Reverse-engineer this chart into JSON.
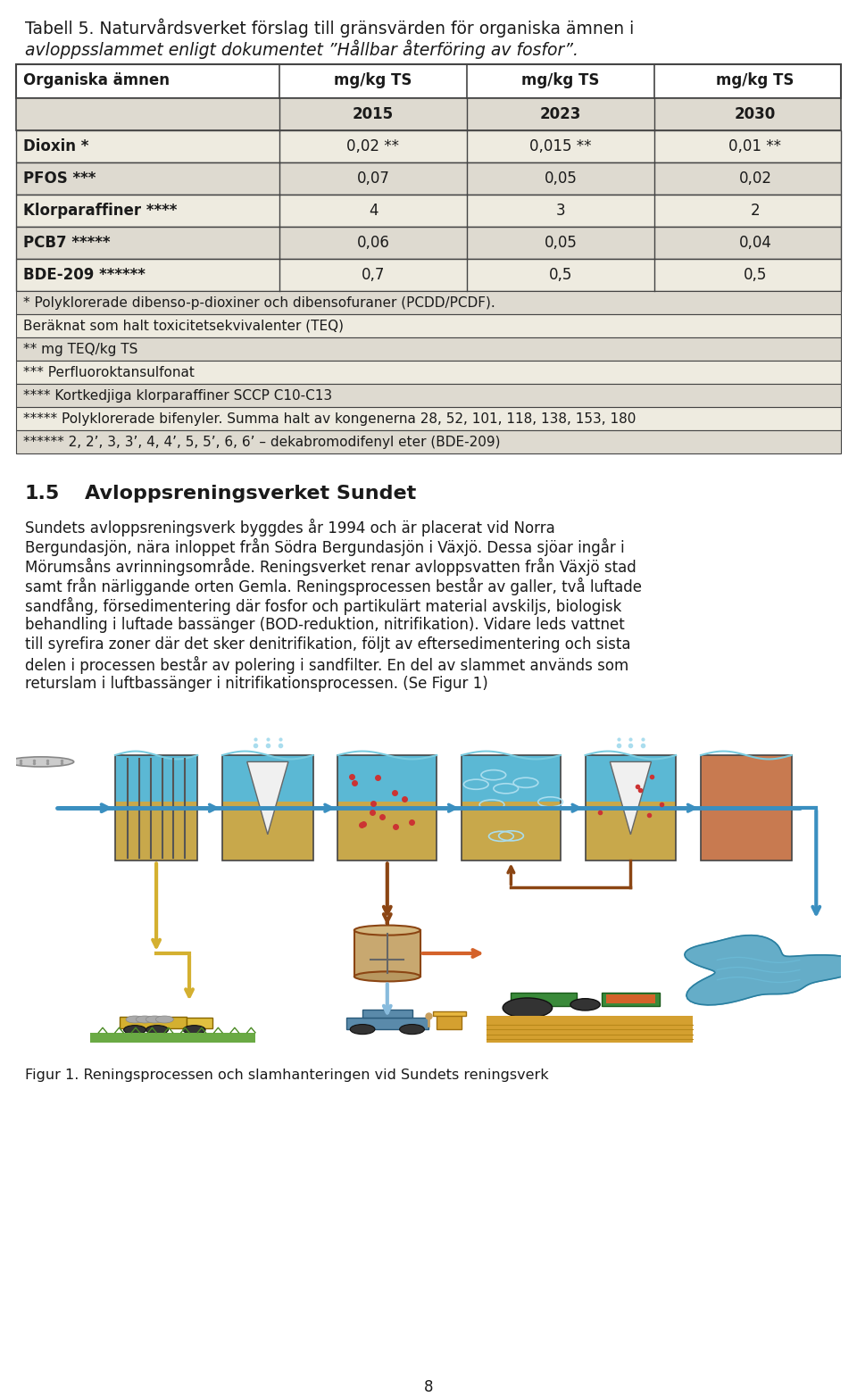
{
  "title_line1": "Tabell 5. Naturvårdsverket förslag till gränsvärden för organiska ämnen i",
  "title_line2": "avloppsslammet enligt dokumentet ”Hållbar återföring av fosfor”.",
  "table_header_col1": "Organiska ämnen",
  "table_header_col2": "mg/kg TS",
  "table_header_col3": "mg/kg TS",
  "table_header_col4": "mg/kg TS",
  "table_subheader_col2": "2015",
  "table_subheader_col3": "2023",
  "table_subheader_col4": "2030",
  "table_rows": [
    [
      "Dioxin *",
      "0,02 **",
      "0,015 **",
      "0,01 **"
    ],
    [
      "PFOS ***",
      "0,07",
      "0,05",
      "0,02"
    ],
    [
      "Klorparaffiner ****",
      "4",
      "3",
      "2"
    ],
    [
      "PCB7 *****",
      "0,06",
      "0,05",
      "0,04"
    ],
    [
      "BDE-209 ******",
      "0,7",
      "0,5",
      "0,5"
    ]
  ],
  "footnotes": [
    "* Polyklorerade dibenso-p-dioxiner och dibensofuraner (PCDD/PCDF).",
    "Beräknat som halt toxicitetsekvivalenter (TEQ)",
    "** mg TEQ/kg TS",
    "*** Perfluoroktansulfonat",
    "**** Kortkedjiga klorparaffiner SCCP C10-C13",
    "***** Polyklorerade bifenyler. Summa halt av kongenerna 28, 52, 101, 118, 138, 153, 180",
    "****** 2, 2’, 3, 3’, 4, 4’, 5, 5’, 6, 6’ – dekabromodifenyl eter (BDE-209)"
  ],
  "footnote_bgs": [
    "#dedad0",
    "#eeebe0",
    "#dedad0",
    "#eeebe0",
    "#dedad0",
    "#eeebe0",
    "#dedad0"
  ],
  "section_number": "1.5",
  "section_title": "Avloppsreningsverket Sundet",
  "paragraph_lines": [
    "Sundets avloppsreningsverk byggdes år 1994 och är placerat vid Norra",
    "Bergundasjön, nära inloppet från Södra Bergundasjön i Växjö. Dessa sjöar ingår i",
    "Mörumsåns avrinningsområde. Reningsverket renar avloppsvatten från Växjö stad",
    "samt från närliggande orten Gemla. Reningsprocessen består av galler, två luftade",
    "sandfång, försedimentering där fosfor och partikulärt material avskiljs, biologisk",
    "behandling i luftade bassänger (BOD-reduktion, nitrifikation). Vidare leds vattnet",
    "till syrefira zoner där det sker denitrifikation, följt av eftersedimentering och sista",
    "delen i processen består av polering i sandfilter. En del av slammet används som",
    "returslam i luftbassänger i nitrifikationsprocessen. (Se Figur 1)"
  ],
  "fig_caption": "Figur 1. Reningsprocessen och slamhanteringen vid Sundets reningsverk",
  "page_number": "8",
  "bg_color": "#ffffff",
  "table_header_bg": "#ffffff",
  "table_row_bg_odd": "#dedad0",
  "table_row_bg_even": "#eeebe0",
  "text_color": "#1a1a1a",
  "border_color": "#444444"
}
